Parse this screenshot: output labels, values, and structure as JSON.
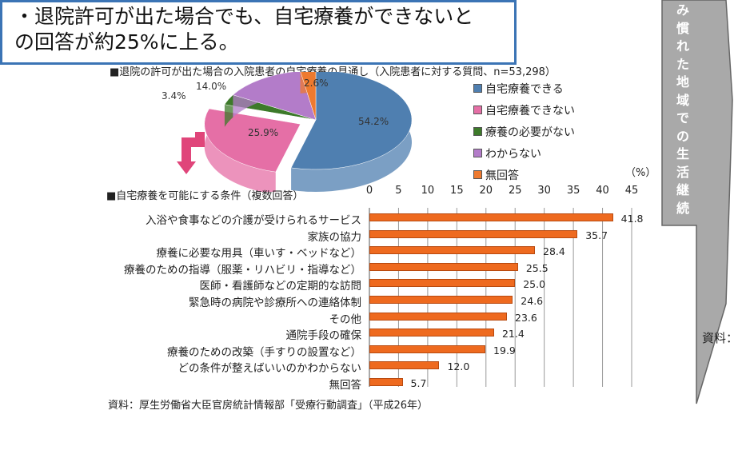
{
  "headline": {
    "line1": "・退院許可が出た場合でも、自宅療養ができないと",
    "line2": "の回答が約25%に上る。"
  },
  "side_banner": {
    "text": [
      "み",
      "慣",
      "れ",
      "た",
      "地",
      "域",
      "で",
      "の",
      "生",
      "活",
      "継",
      "続"
    ],
    "source_label": "資料："
  },
  "colors": {
    "accent": "#3b74b5",
    "bar": "#ee6a1f",
    "arrow": "#e0457a"
  },
  "chart_data": [
    {
      "type": "pie",
      "title": "■退院の許可が出た場合の入院患者の自宅療養の見通し（入院患者に対する質問、n=53,298）",
      "slices": [
        {
          "label": "自宅療養できる",
          "value": 54.2,
          "text": "54.2%",
          "color": "#4f7fb0"
        },
        {
          "label": "自宅療養できない",
          "value": 25.9,
          "text": "25.9%",
          "color": "#e56fa6"
        },
        {
          "label": "療養の必要がない",
          "value": 3.4,
          "text": "3.4%",
          "color": "#3d7a2a"
        },
        {
          "label": "わからない",
          "value": 14.0,
          "text": "14.0%",
          "color": "#b37cc9"
        },
        {
          "label": "無回答",
          "value": 2.6,
          "text": "2.6%",
          "color": "#ee7a2f"
        }
      ],
      "legend": "right"
    },
    {
      "type": "bar",
      "title": "■自宅療養を可能にする条件（複数回答）",
      "unit": "（%）",
      "xlim": [
        0,
        45
      ],
      "ticks": [
        "0",
        "5",
        "10",
        "15",
        "20",
        "25",
        "30",
        "35",
        "40",
        "45"
      ],
      "categories": [
        "入浴や食事などの介護が受けられるサービス",
        "家族の協力",
        "療養に必要な用具（車いす・ベッドなど）",
        "療養のための指導（服薬・リハビリ・指導など）",
        "医師・看護師などの定期的な訪問",
        "緊急時の病院や診療所への連絡体制",
        "その他",
        "通院手段の確保",
        "療養のための改築（手すりの設置など）",
        "どの条件が整えばいいのかわからない",
        "無回答"
      ],
      "values": [
        41.8,
        35.7,
        28.4,
        25.5,
        25.0,
        24.6,
        23.6,
        21.4,
        19.9,
        12.0,
        5.7
      ],
      "labels": [
        "41.8",
        "35.7",
        "28.4",
        "25.5",
        "25.0",
        "24.6",
        "23.6",
        "21.4",
        "19.9",
        "12.0",
        "5.7"
      ]
    }
  ],
  "source": "資料：厚生労働省大臣官房統計情報部「受療行動調査」（平成26年）"
}
